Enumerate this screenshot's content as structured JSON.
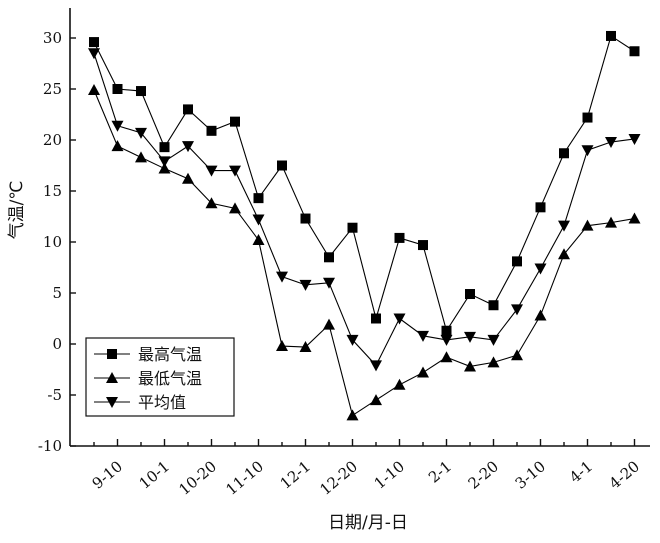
{
  "chart_data": {
    "type": "line",
    "xlabel": "日期/月-日",
    "ylabel": "气温/℃",
    "ylim": [
      -10,
      30
    ],
    "yticks": [
      -10,
      -5,
      0,
      5,
      10,
      15,
      20,
      25,
      30
    ],
    "grid": false,
    "legend_position": "bottom-left",
    "x_tick_labels": [
      "9-10",
      "10-1",
      "10-20",
      "11-10",
      "12-1",
      "12-20",
      "1-10",
      "2-1",
      "2-20",
      "3-10",
      "4-1",
      "4-20"
    ],
    "x_points": [
      "9-1",
      "9-10",
      "9-20",
      "10-1",
      "10-10",
      "10-20",
      "11-1",
      "11-10",
      "11-20",
      "12-1",
      "12-10",
      "12-20",
      "1-1",
      "1-10",
      "1-20",
      "2-1",
      "2-10",
      "2-20",
      "3-1",
      "3-10",
      "3-20",
      "4-1",
      "4-10",
      "4-20"
    ],
    "series": [
      {
        "name": "最高气温",
        "marker": "square",
        "values": [
          29.6,
          25.0,
          24.8,
          19.3,
          23.0,
          20.9,
          21.8,
          14.3,
          17.5,
          12.3,
          8.5,
          11.4,
          2.5,
          10.4,
          9.7,
          1.3,
          4.9,
          3.8,
          8.1,
          13.4,
          18.7,
          22.2,
          30.2,
          28.7
        ]
      },
      {
        "name": "最低气温",
        "marker": "triangle-up",
        "values": [
          24.9,
          19.4,
          18.3,
          17.2,
          16.2,
          13.8,
          13.3,
          10.2,
          -0.2,
          -0.3,
          1.9,
          -7.0,
          -5.5,
          -4.0,
          -2.8,
          -1.3,
          -2.2,
          -1.8,
          -1.1,
          2.8,
          8.8,
          11.6,
          11.9,
          12.3
        ]
      },
      {
        "name": "平均值",
        "marker": "triangle-down",
        "values": [
          28.5,
          21.4,
          20.7,
          17.9,
          19.4,
          17.0,
          17.0,
          12.2,
          6.6,
          5.8,
          6.0,
          0.4,
          -2.1,
          2.5,
          0.8,
          0.4,
          0.7,
          0.4,
          3.4,
          7.4,
          11.6,
          19.0,
          19.8,
          20.1
        ]
      }
    ]
  }
}
